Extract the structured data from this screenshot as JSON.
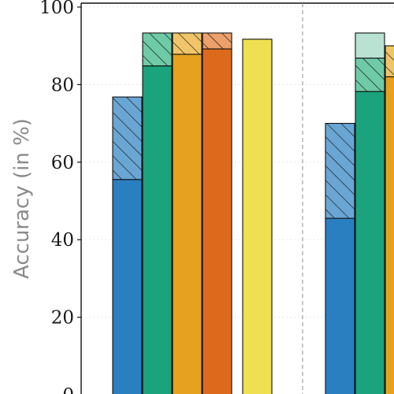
{
  "chart_data": {
    "type": "bar",
    "ylabel": "Accuracy (in %)",
    "ylim": [
      0,
      101
    ],
    "yticks": [
      0,
      20,
      40,
      60,
      80,
      100
    ],
    "grid": true,
    "group_separator": "dashed",
    "groups": [
      {
        "bars": [
          {
            "color": "#2a7fc0",
            "light": "#6aa6d4",
            "base": 55.5,
            "total": 76.8,
            "hatched": true
          },
          {
            "color": "#1aa37c",
            "light": "#6fcaa7",
            "base": 84.8,
            "total": 93.3,
            "hatched": true
          },
          {
            "color": "#e6a21e",
            "light": "#f0c569",
            "base": 87.8,
            "total": 93.3,
            "hatched": true
          },
          {
            "color": "#dd6a1c",
            "light": "#eda06a",
            "base": 89.2,
            "total": 93.3,
            "hatched": true
          },
          {
            "color": "#efe051",
            "light": "#efe051",
            "base": 91.7,
            "total": 91.7,
            "hatched": false
          }
        ]
      },
      {
        "bars": [
          {
            "color": "#2a7fc0",
            "light": "#6aa6d4",
            "base": 45.5,
            "total": 70.0,
            "hatched": true
          },
          {
            "color": "#1aa37c",
            "light": "#6fcaa7",
            "base": 78.2,
            "total": 86.8,
            "hatched": true,
            "extra_total": 93.3,
            "extra_color": "#b9e2d3"
          },
          {
            "color": "#e6a21e",
            "light": "#f0c569",
            "base": 82.0,
            "total": 90.0,
            "hatched": true
          }
        ]
      }
    ]
  }
}
